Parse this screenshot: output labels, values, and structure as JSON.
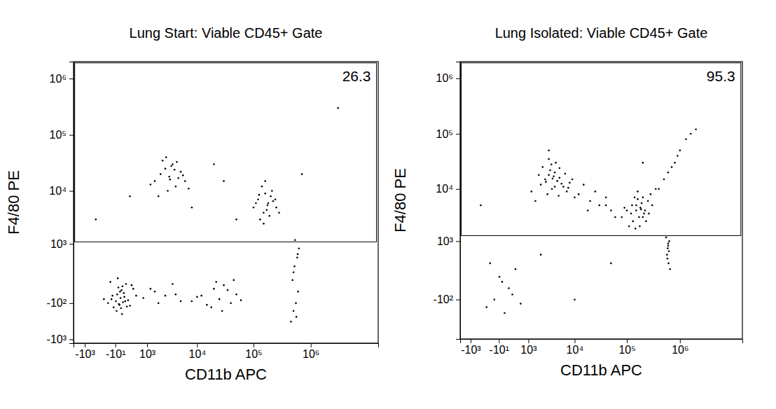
{
  "chart_data": [
    {
      "type": "scatter",
      "title": "Lung Start: Viable CD45+ Gate",
      "x_label": "CD11b APC",
      "y_label": "F4/80 PE",
      "log": true,
      "color": "#000000",
      "xlim": [
        -1800,
        15000000
      ],
      "ylim": [
        -1200,
        2000000
      ],
      "xticks": [
        {
          "value": -1000,
          "label": "-10³"
        },
        {
          "value": -10,
          "label": "-10¹"
        },
        {
          "value": 1000,
          "label": "10³"
        },
        {
          "value": 10000,
          "label": "10⁴"
        },
        {
          "value": 100000,
          "label": "10⁵"
        },
        {
          "value": 1000000,
          "label": "10⁶"
        }
      ],
      "yticks": [
        {
          "value": -1000,
          "label": "-10³"
        },
        {
          "value": -100,
          "label": "-10²"
        },
        {
          "value": 1000,
          "label": "10³"
        },
        {
          "value": 10000,
          "label": "10⁴"
        },
        {
          "value": 100000,
          "label": "10⁵"
        },
        {
          "value": 1000000,
          "label": "10⁶"
        }
      ],
      "gate": {
        "xmin": -1700,
        "xmax": 14000000,
        "ymin": 1100,
        "ymax": 1900000,
        "percent": 26.3
      },
      "x": [
        -150,
        -80,
        -40,
        0,
        20,
        40,
        60,
        80,
        100,
        130,
        160,
        200,
        250,
        300,
        400,
        500,
        -250,
        -100,
        10,
        50,
        70,
        90,
        120,
        150,
        180,
        220,
        350,
        -60,
        30,
        110,
        8000,
        12000,
        15000,
        20000,
        25000,
        30000,
        40000,
        50000,
        18000,
        22000,
        35000,
        10000,
        28000,
        45000,
        60000,
        800,
        1200,
        1800,
        2500,
        3500,
        5000,
        1500,
        4000,
        450000,
        500000,
        550000,
        600000,
        480000,
        520000,
        580000,
        620000,
        530000,
        560000,
        500000,
        590000,
        1500,
        2000,
        2500,
        3000,
        3500,
        4000,
        5000,
        6000,
        2200,
        2800,
        3300,
        4500,
        1800,
        2600,
        3800,
        7000,
        1200,
        3100,
        4200,
        5500,
        100000,
        120000,
        150000,
        180000,
        200000,
        250000,
        130000,
        160000,
        220000,
        170000,
        140000,
        190000,
        110000,
        210000,
        280000,
        150000,
        175000,
        125000,
        240000,
        160000,
        -500,
        300,
        20000,
        50000,
        8000,
        700000,
        3000000,
        30000
      ],
      "values": [
        -100,
        -60,
        -150,
        -80,
        -20,
        30,
        -120,
        -50,
        10,
        -90,
        -40,
        60,
        -70,
        -130,
        20,
        -30,
        -60,
        80,
        -200,
        -110,
        0,
        -160,
        40,
        -10,
        -80,
        -140,
        50,
        -30,
        120,
        -250,
        -80,
        -30,
        -120,
        20,
        -60,
        50,
        -100,
        -20,
        -150,
        80,
        10,
        -40,
        -200,
        100,
        -70,
        -50,
        20,
        -100,
        -30,
        60,
        -80,
        0,
        -20,
        -400,
        -200,
        -100,
        0,
        100,
        300,
        500,
        800,
        1200,
        -300,
        200,
        600,
        15000,
        20000,
        25000,
        18000,
        30000,
        12000,
        22000,
        15000,
        35000,
        10000,
        28000,
        17000,
        8000,
        40000,
        24000,
        11000,
        13000,
        16000,
        33000,
        19000,
        5000,
        7000,
        4000,
        6000,
        8000,
        5000,
        3000,
        9000,
        6500,
        4500,
        12000,
        3500,
        6000,
        10000,
        4000,
        2500,
        5500,
        8500,
        7000,
        15000,
        3000,
        8000,
        30000,
        3000,
        5000,
        20000,
        300000,
        15000
      ]
    },
    {
      "type": "scatter",
      "title": "Lung Isolated: Viable CD45+ Gate",
      "x_label": "CD11b APC",
      "y_label": "F4/80 PE",
      "log": true,
      "color": "#000000",
      "xlim": [
        -1800,
        15000000
      ],
      "ylim": [
        -1200,
        2000000
      ],
      "xticks": [
        {
          "value": -1000,
          "label": "-10³"
        },
        {
          "value": -10,
          "label": "-10¹"
        },
        {
          "value": 1000,
          "label": "10³"
        },
        {
          "value": 10000,
          "label": "10⁴"
        },
        {
          "value": 100000,
          "label": "10⁵"
        },
        {
          "value": 1000000,
          "label": "10⁶"
        }
      ],
      "yticks": [
        {
          "value": -100,
          "label": "-10²"
        },
        {
          "value": 1000,
          "label": "10³"
        },
        {
          "value": 10000,
          "label": "10⁴"
        },
        {
          "value": 100000,
          "label": "10⁵"
        },
        {
          "value": 1000000,
          "label": "10⁶"
        }
      ],
      "gate": {
        "xmin": -1700,
        "xmax": 14000000,
        "ymin": 1300,
        "ymax": 1900000,
        "percent": 95.3
      },
      "x": [
        2000,
        2500,
        3000,
        3500,
        4000,
        4500,
        5000,
        6000,
        7000,
        8000,
        2200,
        2800,
        3200,
        3800,
        4200,
        5500,
        6500,
        1500,
        1200,
        10000,
        3000,
        4000,
        5000,
        2600,
        3600,
        4800,
        7500,
        1800,
        9000,
        3400,
        80000,
        100000,
        120000,
        150000,
        180000,
        200000,
        250000,
        300000,
        130000,
        160000,
        220000,
        170000,
        140000,
        190000,
        110000,
        210000,
        280000,
        90000,
        230000,
        150000,
        175000,
        125000,
        260000,
        160000,
        60000,
        40000,
        200000,
        145000,
        185000,
        350000,
        12000,
        20000,
        30000,
        15000,
        25000,
        40000,
        50000,
        18000,
        400000,
        500000,
        600000,
        700000,
        800000,
        1000000,
        1300000,
        1600000,
        2000000,
        900000,
        550000,
        600000,
        620000,
        580000,
        650000,
        600000,
        570000,
        630000,
        610000,
        590000,
        -300,
        -100,
        0,
        100,
        200,
        400,
        600,
        300,
        -200,
        50,
        2000,
        50000,
        10000,
        3000,
        200000,
        -500
      ],
      "values": [
        12000,
        15000,
        18000,
        10000,
        20000,
        14000,
        16000,
        11000,
        9000,
        13000,
        25000,
        8000,
        22000,
        17000,
        30000,
        12500,
        19000,
        6000,
        9000,
        7000,
        35000,
        11000,
        24000,
        13500,
        15500,
        7500,
        10500,
        18000,
        15000,
        28000,
        3000,
        4000,
        3500,
        5000,
        4500,
        3000,
        6000,
        5000,
        2500,
        6500,
        4000,
        3000,
        7000,
        5500,
        2000,
        3500,
        8000,
        4500,
        2500,
        4000,
        2000,
        5000,
        3500,
        9000,
        3000,
        5000,
        7000,
        1800,
        4200,
        10000,
        8000,
        6000,
        5000,
        12000,
        9000,
        7000,
        4000,
        4000,
        10000,
        15000,
        20000,
        25000,
        30000,
        50000,
        80000,
        100000,
        120000,
        40000,
        1200,
        900,
        600,
        400,
        200,
        800,
        500,
        1000,
        300,
        700,
        -200,
        -100,
        100,
        -300,
        0,
        200,
        -150,
        -50,
        300,
        50,
        500,
        300,
        -100,
        50000,
        30000,
        5000
      ]
    }
  ]
}
